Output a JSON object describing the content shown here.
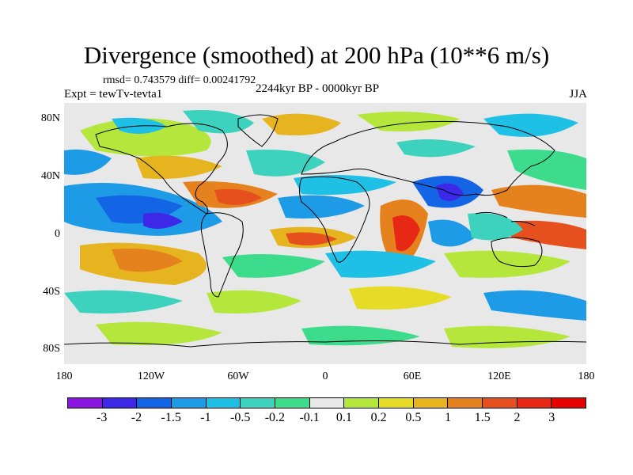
{
  "title": "Divergence (smoothed) at 200 hPa (10**6 m/s)",
  "stats": "rmsd= 0.743579 diff= 0.00241792",
  "experiment": "Expt = tewTv-tevta1",
  "period": "2244kyr BP - 0000kyr BP",
  "season": "JJA",
  "y_ticks": [
    "80N",
    "40N",
    "0",
    "40S",
    "80S"
  ],
  "x_ticks": [
    "180",
    "120W",
    "60W",
    "0",
    "60E",
    "120E",
    "180"
  ],
  "colorbar": {
    "colors": [
      "#8a14e0",
      "#3c28e6",
      "#1464e6",
      "#1e9be6",
      "#1ec0e6",
      "#3cd2be",
      "#3cdc8c",
      "#e8e8e8",
      "#b4e63c",
      "#e6dc28",
      "#e6b41e",
      "#e6821e",
      "#e6501e",
      "#e62814",
      "#e60000"
    ],
    "labels": [
      "-3",
      "-2",
      "-1.5",
      "-1",
      "-0.5",
      "-0.2",
      "-0.1",
      "0.1",
      "0.2",
      "0.5",
      "1",
      "1.5",
      "2",
      "3"
    ]
  }
}
